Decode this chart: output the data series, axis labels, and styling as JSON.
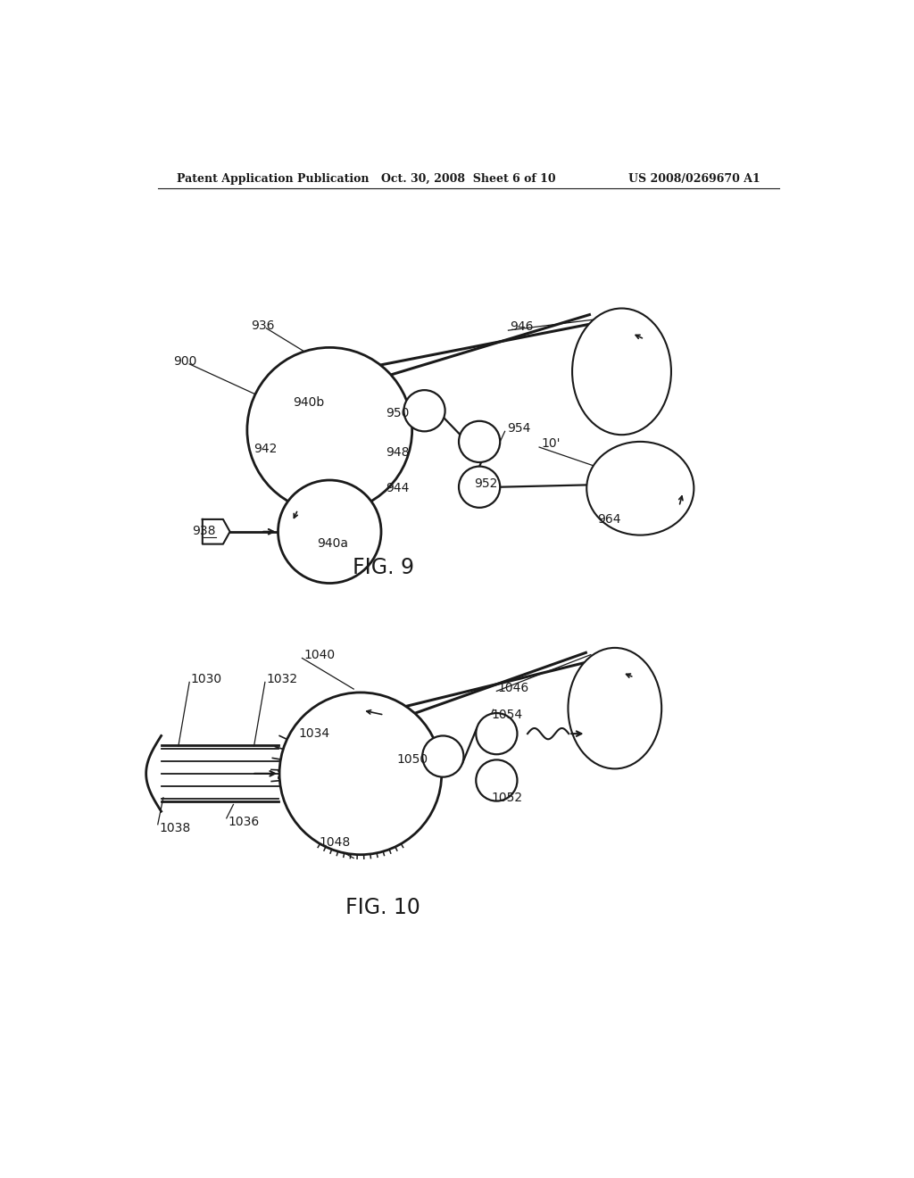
{
  "bg_color": "#ffffff",
  "header_left": "Patent Application Publication",
  "header_mid": "Oct. 30, 2008  Sheet 6 of 10",
  "header_right": "US 2008/0269670 A1",
  "fig9_label": "FIG. 9",
  "fig10_label": "FIG. 10",
  "line_color": "#1a1a1a",
  "text_color": "#1a1a1a"
}
